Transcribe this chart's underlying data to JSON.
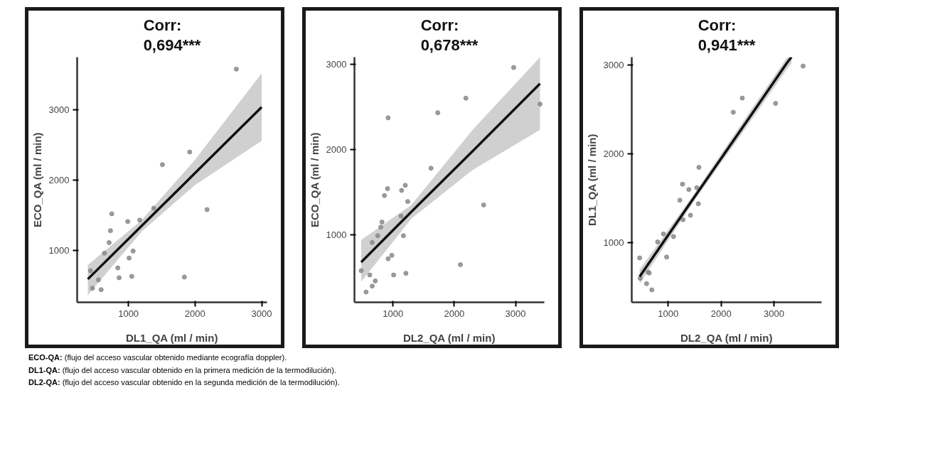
{
  "chart_data": [
    {
      "type": "scatter",
      "title": "Corr: 0,694***",
      "xlabel": "DL1_QA (ml / min)",
      "ylabel": "ECO_QA (ml / min)",
      "xlim": [
        230,
        3080
      ],
      "ylim": [
        260,
        3750
      ],
      "xticks": [
        1000,
        2000,
        3000
      ],
      "yticks": [
        1000,
        2000,
        3000
      ],
      "grid": false,
      "series": [
        {
          "marker": "circle",
          "color": "#8a8a8a",
          "x": [
            2620,
            1920,
            1510,
            2180,
            1840,
            750,
            730,
            710,
            640,
            990,
            1170,
            1070,
            1010,
            1050,
            860,
            840,
            460,
            590,
            550,
            430,
            1380
          ],
          "values": [
            3580,
            2400,
            2220,
            1580,
            620,
            1520,
            1280,
            1110,
            960,
            1410,
            1430,
            990,
            890,
            630,
            610,
            750,
            460,
            440,
            580,
            710,
            1600
          ]
        },
        {
          "type": "line",
          "marker": "none",
          "color": "#111111",
          "x": [
            390,
            1200,
            2000,
            3000
          ],
          "values": [
            590,
            1350,
            2100,
            3040
          ],
          "lower": [
            360,
            1270,
            1930,
            2560
          ],
          "upper": [
            790,
            1430,
            2290,
            3520
          ]
        }
      ],
      "annotations": [
        "ECO-QA: (flujo del acceso vascular obtenido mediante ecografía doppler).",
        "DL1-QA: (flujo del acceso vascular obtenido en la primera medición de la termodilución).",
        "DL2-QA: (flujo del acceso vascular obtenido en la segunda medición de la termodilución)."
      ]
    },
    {
      "type": "scatter",
      "title": "Corr: 0,678***",
      "xlabel": "DL2_QA (ml / min)",
      "ylabel": "ECO_QA (ml / min)",
      "xlim": [
        370,
        3470
      ],
      "ylim": [
        210,
        3080
      ],
      "xticks": [
        1000,
        2000,
        3000
      ],
      "yticks": [
        1000,
        2000,
        3000
      ],
      "grid": false,
      "series": [
        {
          "marker": "circle",
          "color": "#8a8a8a",
          "x": [
            2970,
            3400,
            2190,
            1730,
            920,
            1620,
            2480,
            2100,
            910,
            860,
            1200,
            1140,
            1240,
            820,
            800,
            750,
            660,
            1170,
            980,
            920,
            1010,
            1210,
            480,
            620,
            710,
            660,
            560,
            1130
          ],
          "values": [
            2960,
            2530,
            2600,
            2430,
            2370,
            1780,
            1350,
            650,
            1540,
            1460,
            1580,
            1520,
            1390,
            1150,
            1090,
            990,
            910,
            990,
            760,
            720,
            530,
            550,
            580,
            530,
            460,
            400,
            330,
            1220
          ]
        },
        {
          "type": "line",
          "marker": "none",
          "color": "#111111",
          "x": [
            480,
            1300,
            2300,
            3400
          ],
          "values": [
            680,
            1270,
            1980,
            2770
          ],
          "lower": [
            450,
            1190,
            1760,
            2230
          ],
          "upper": [
            940,
            1350,
            2230,
            3080
          ]
        }
      ]
    },
    {
      "type": "scatter",
      "title": "Corr: 0,941***",
      "xlabel": "DL2_QA (ml / min)",
      "ylabel": "DL1_QA (ml / min)",
      "xlim": [
        310,
        3900
      ],
      "ylim": [
        330,
        3090
      ],
      "xticks": [
        1000,
        2000,
        3000
      ],
      "yticks": [
        1000,
        2000,
        3000
      ],
      "grid": false,
      "series": [
        {
          "marker": "circle",
          "color": "#8a8a8a",
          "x": [
            460,
            470,
            620,
            640,
            590,
            690,
            800,
            910,
            970,
            1100,
            1220,
            1270,
            1280,
            1420,
            1390,
            1580,
            1570,
            1540,
            2230,
            2400,
            3030,
            3550
          ],
          "values": [
            830,
            600,
            670,
            660,
            540,
            470,
            1010,
            1100,
            840,
            1070,
            1480,
            1660,
            1260,
            1310,
            1600,
            1850,
            1440,
            1620,
            2470,
            2630,
            2570,
            2990
          ]
        },
        {
          "type": "line",
          "marker": "none",
          "color": "#111111",
          "x": [
            460,
            1500,
            2500,
            3250,
            3330
          ],
          "values": [
            620,
            1520,
            2380,
            3030,
            3090
          ],
          "lower": [
            540,
            1480,
            2320,
            2960,
            3020
          ],
          "upper": [
            700,
            1560,
            2440,
            3090,
            3090
          ]
        }
      ]
    }
  ]
}
